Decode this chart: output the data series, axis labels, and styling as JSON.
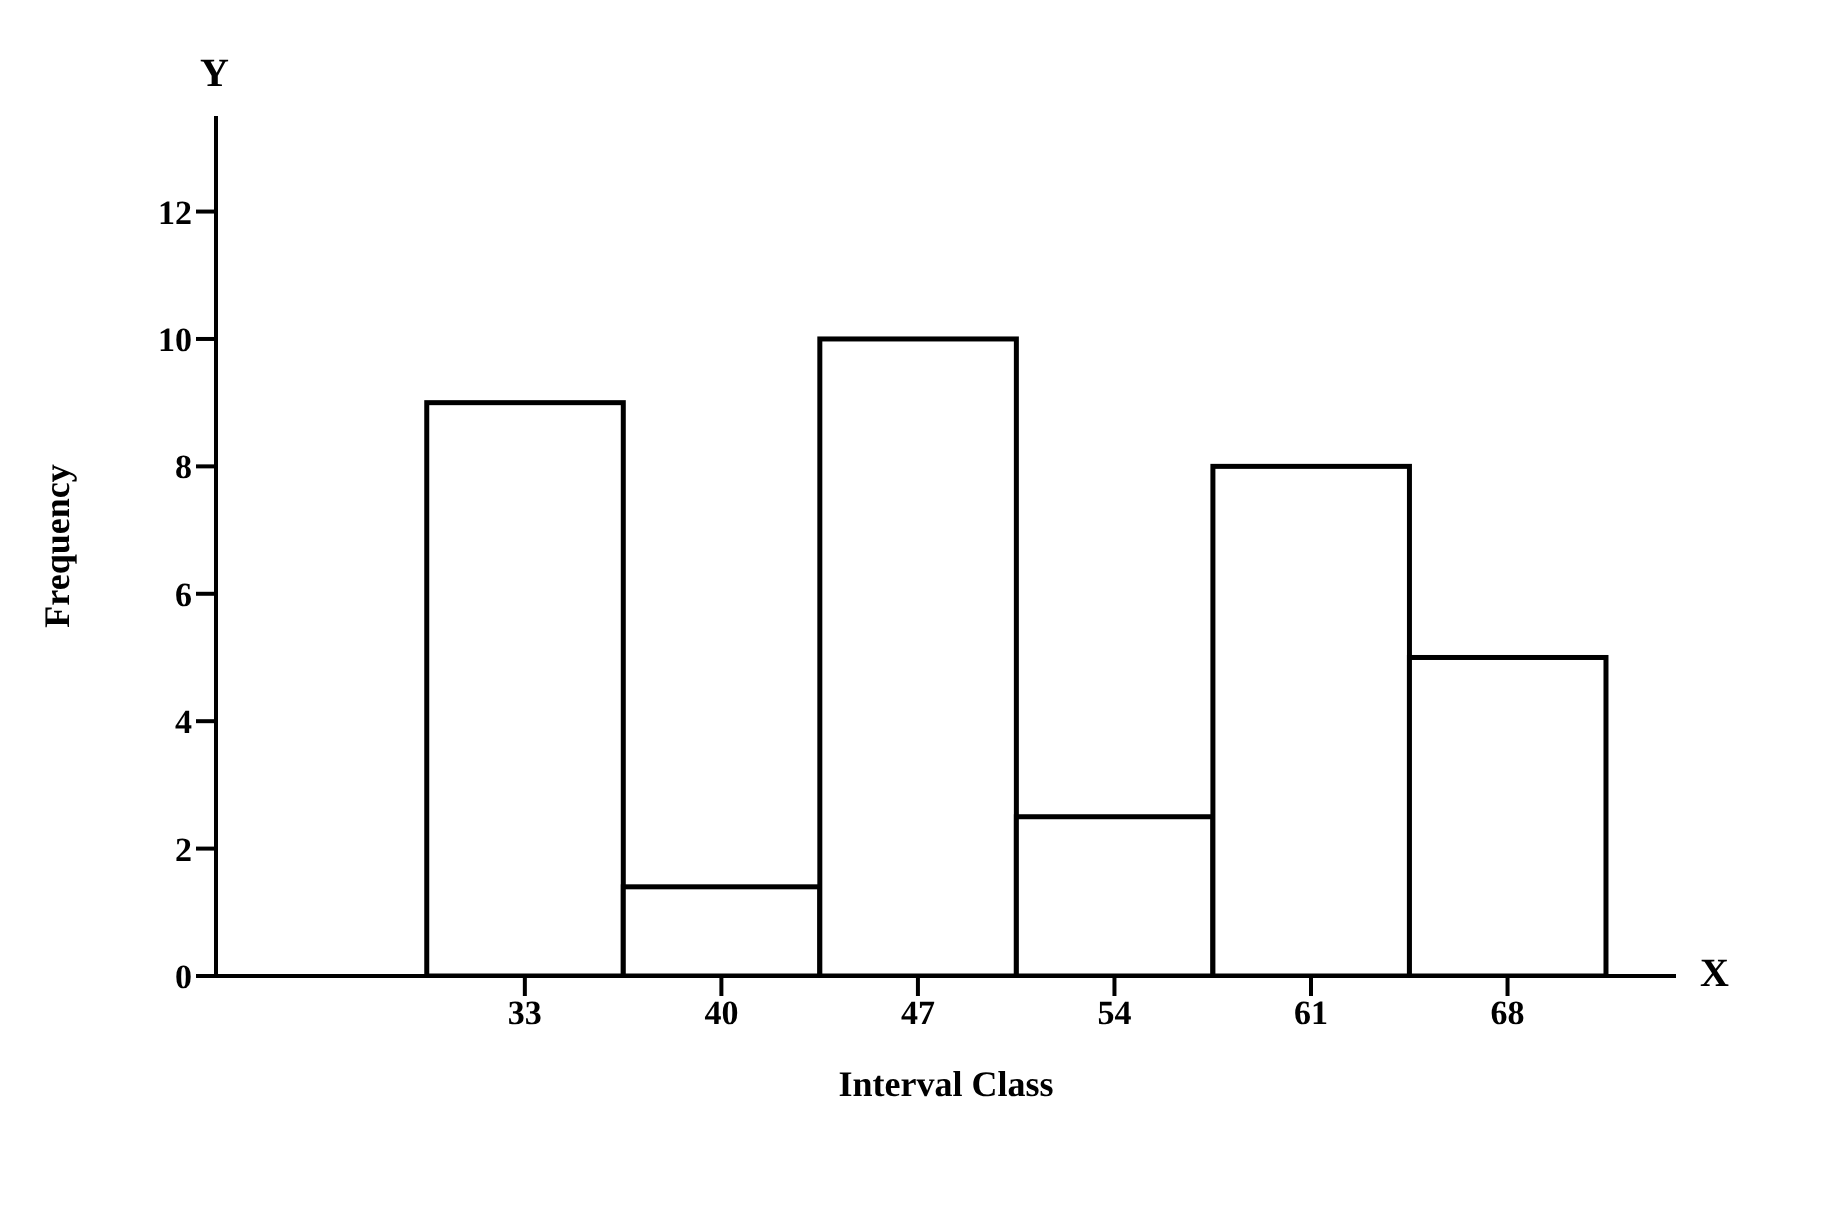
{
  "chart_data": {
    "type": "histogram",
    "xlabel": "Interval Class",
    "ylabel": "Frequency",
    "bins": [
      29.5,
      36.5,
      43.5,
      50.5,
      57.5,
      64.5,
      71.5
    ],
    "values": [
      9,
      1.4,
      10,
      2.5,
      8,
      5
    ],
    "color": "#ffffff",
    "xlim": [
      22,
      74
    ],
    "xticks": [
      33,
      40,
      47,
      54,
      61,
      68
    ],
    "ylim": [
      0,
      13.5
    ],
    "yticks": [
      0,
      2,
      4,
      6,
      8,
      10,
      12
    ],
    "annotations": [
      "Y",
      "X"
    ]
  }
}
